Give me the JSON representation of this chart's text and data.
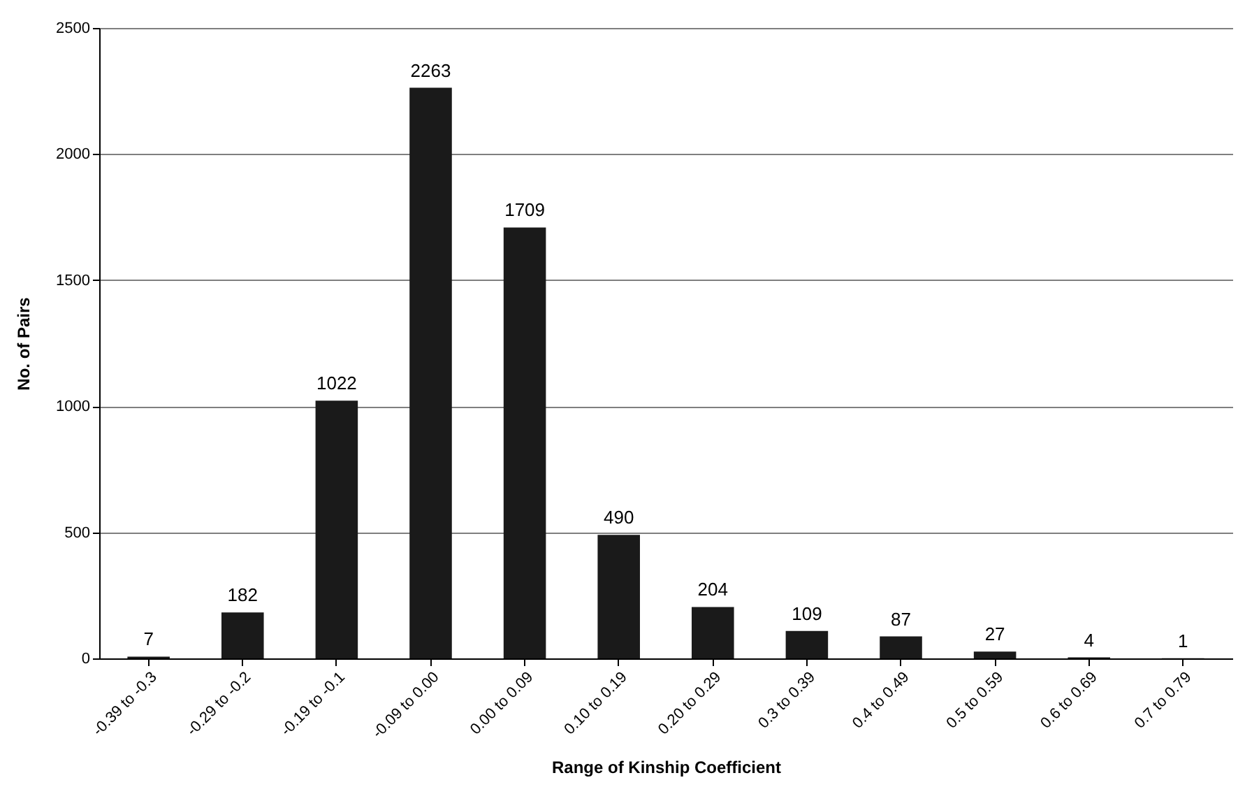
{
  "chart_data": {
    "type": "bar",
    "xlabel": "Range of Kinship Coefficient",
    "ylabel": "No. of Pairs",
    "categories": [
      "-0.39 to -0.3",
      "-0.29 to -0.2",
      "-0.19 to -0.1",
      "-0.09 to 0.00",
      "0.00 to 0.09",
      "0.10 to 0.19",
      "0.20 to 0.29",
      "0.3 to 0.39",
      "0.4 to 0.49",
      "0.5 to 0.59",
      "0.6 to 0.69",
      "0.7 to 0.79"
    ],
    "values": [
      7,
      182,
      1022,
      2263,
      1709,
      490,
      204,
      109,
      87,
      27,
      4,
      1
    ],
    "color": "#1a1a1a",
    "ylim": [
      0,
      2500
    ],
    "yticks": [
      0,
      500,
      1000,
      1500,
      2000,
      2500
    ],
    "grid": "y",
    "data_labels": true
  }
}
